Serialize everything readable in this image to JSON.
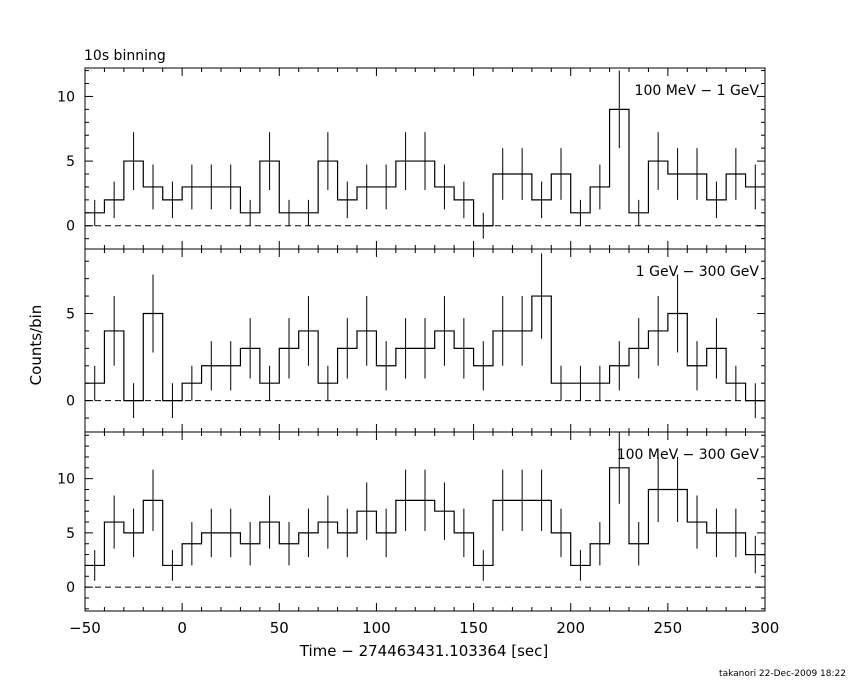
{
  "header": {
    "title": "10s binning"
  },
  "footer": {
    "credit": "takanori 22-Dec-2009 18:22"
  },
  "chart_data": [
    {
      "type": "line",
      "label": "100 MeV − 1 GeV",
      "bin_width": 10,
      "x": [
        -45,
        -35,
        -25,
        -15,
        -5,
        5,
        15,
        25,
        35,
        45,
        55,
        65,
        75,
        85,
        95,
        105,
        115,
        125,
        135,
        145,
        155,
        165,
        175,
        185,
        195,
        205,
        215,
        225,
        235,
        245,
        255,
        265,
        275,
        285,
        295
      ],
      "values": [
        1,
        2,
        5,
        3,
        2,
        3,
        3,
        3,
        1,
        5,
        1,
        1,
        5,
        2,
        3,
        3,
        5,
        5,
        3,
        2,
        0,
        4,
        4,
        2,
        4,
        1,
        3,
        9,
        1,
        5,
        4,
        4,
        2,
        4,
        3
      ],
      "ylim": [
        -1.8,
        12.2
      ],
      "yticks": [
        0,
        5,
        10
      ]
    },
    {
      "type": "line",
      "label": "1 GeV − 300 GeV",
      "bin_width": 10,
      "x": [
        -45,
        -35,
        -25,
        -15,
        -5,
        5,
        15,
        25,
        35,
        45,
        55,
        65,
        75,
        85,
        95,
        105,
        115,
        125,
        135,
        145,
        155,
        165,
        175,
        185,
        195,
        205,
        215,
        225,
        235,
        245,
        255,
        265,
        275,
        285,
        295
      ],
      "values": [
        1,
        4,
        0,
        5,
        0,
        1,
        2,
        2,
        3,
        1,
        3,
        4,
        1,
        3,
        4,
        2,
        3,
        3,
        4,
        3,
        2,
        4,
        4,
        6,
        1,
        1,
        1,
        2,
        3,
        4,
        5,
        2,
        3,
        1,
        0
      ],
      "ylim": [
        -1.8,
        8.7
      ],
      "yticks": [
        0,
        5
      ]
    },
    {
      "type": "line",
      "label": "100 MeV − 300 GeV",
      "bin_width": 10,
      "x": [
        -45,
        -35,
        -25,
        -15,
        -5,
        5,
        15,
        25,
        35,
        45,
        55,
        65,
        75,
        85,
        95,
        105,
        115,
        125,
        135,
        145,
        155,
        165,
        175,
        185,
        195,
        205,
        215,
        225,
        235,
        245,
        255,
        265,
        275,
        285,
        295
      ],
      "values": [
        2,
        6,
        5,
        8,
        2,
        4,
        5,
        5,
        4,
        6,
        4,
        5,
        6,
        5,
        7,
        5,
        8,
        8,
        7,
        5,
        2,
        8,
        8,
        8,
        5,
        2,
        4,
        11,
        4,
        9,
        9,
        6,
        5,
        5,
        3
      ],
      "ylim": [
        -2.2,
        14.3
      ],
      "yticks": [
        0,
        5,
        10
      ]
    }
  ],
  "axes": {
    "xlim": [
      -50,
      300
    ],
    "xticks": [
      -50,
      0,
      50,
      100,
      150,
      200,
      250,
      300
    ],
    "xtick_labels": [
      "−50",
      "0",
      "50",
      "100",
      "150",
      "200",
      "250",
      "300"
    ],
    "xlabel": "Time − 274463431.103364 [sec]",
    "ylabel": "Counts/bin"
  },
  "style": {
    "line_color": "#000000",
    "background": "#ffffff"
  }
}
